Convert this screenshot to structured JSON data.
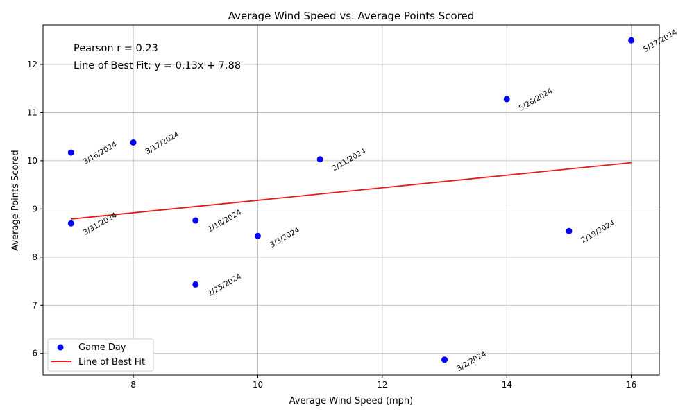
{
  "chart_data": {
    "type": "scatter",
    "title": "Average Wind Speed vs. Average Points Scored",
    "xlabel": "Average Wind Speed (mph)",
    "ylabel": "Average Points Scored",
    "xlim": [
      6.55,
      16.45
    ],
    "ylim": [
      5.55,
      12.82
    ],
    "xticks": [
      8,
      10,
      12,
      14,
      16
    ],
    "yticks": [
      6,
      7,
      8,
      9,
      10,
      11,
      12
    ],
    "grid": true,
    "legend_position": "lower-left",
    "annotations": {
      "pearson": "Pearson r = 0.23",
      "fit_line": "Line of Best Fit: y = 0.13x + 7.88"
    },
    "series": [
      {
        "name": "Game Day",
        "kind": "scatter",
        "color": "#0000ff",
        "points": [
          {
            "x": 7,
            "y": 10.17,
            "label": "3/16/2024"
          },
          {
            "x": 8,
            "y": 10.38,
            "label": "3/17/2024"
          },
          {
            "x": 11,
            "y": 10.03,
            "label": "2/11/2024"
          },
          {
            "x": 14,
            "y": 11.28,
            "label": "5/26/2024"
          },
          {
            "x": 16,
            "y": 12.5,
            "label": "5/27/2024"
          },
          {
            "x": 7,
            "y": 8.7,
            "label": "3/31/2024"
          },
          {
            "x": 9,
            "y": 8.76,
            "label": "2/18/2024"
          },
          {
            "x": 10,
            "y": 8.44,
            "label": "3/3/2024"
          },
          {
            "x": 9,
            "y": 7.43,
            "label": "2/25/2024"
          },
          {
            "x": 15,
            "y": 8.54,
            "label": "2/19/2024"
          },
          {
            "x": 13,
            "y": 5.87,
            "label": "3/2/2024"
          }
        ]
      },
      {
        "name": "Line of Best Fit",
        "kind": "line",
        "color": "#e41a1c",
        "slope": 0.13,
        "intercept": 7.88,
        "x_range": [
          7,
          16
        ]
      }
    ]
  }
}
